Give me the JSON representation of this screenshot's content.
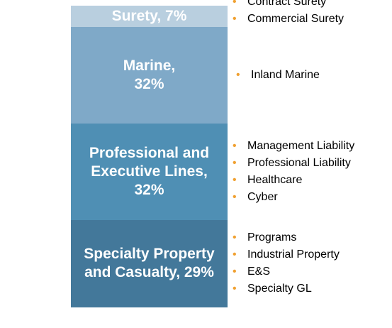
{
  "chart_data": {
    "type": "stacked_bar",
    "values": [
      29,
      32,
      32,
      7
    ],
    "value_labels": [
      "Specialty Property and Casualty, 29%",
      "Professional and Executive Lines, 32%",
      "Marine, 32%",
      "Surety, 7%"
    ],
    "colors": [
      "#43789a",
      "#4f8fb4",
      "#7fa9c8",
      "#b9cfdf"
    ],
    "details": [
      [
        "Programs",
        "Industrial Property",
        "E&S",
        "Specialty GL"
      ],
      [
        "Management Liability",
        "Professional Liability",
        "Healthcare",
        "Cyber"
      ],
      [
        "Inland Marine"
      ],
      [
        "Contract Surety",
        "Commercial Surety"
      ]
    ]
  }
}
